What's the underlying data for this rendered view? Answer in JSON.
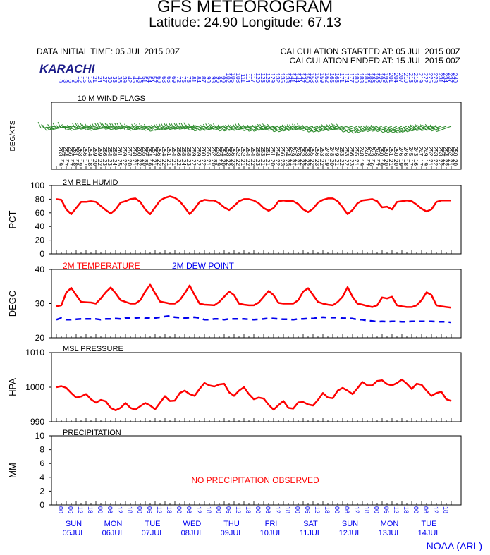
{
  "header": {
    "title": "GFS METEOROGRAM",
    "subtitle": "Latitude: 24.90 Longitude:  67.13",
    "data_initial_time": "DATA INITIAL TIME: 05 JUL 2015 00Z",
    "calc_started": "CALCULATION STARTED AT: 05 JUL 2015 00Z",
    "calc_ended": "CALCULATION ENDED AT: 15 JUL 2015 00Z",
    "location": "KARACHI",
    "credit": "NOAA (ARL)"
  },
  "colors": {
    "red": "#ff0000",
    "blue": "#0000ee",
    "green": "#2a8a2a",
    "navy": "#1c1c8a"
  },
  "chart_data": [
    {
      "type": "line",
      "panel": "wind",
      "title": "10 M  WIND FLAGS",
      "ylabel": "DEG/KTS",
      "directions_deg": [
        "263",
        "254",
        "256",
        "261",
        "263",
        "256",
        "254",
        "259",
        "259",
        "256",
        "254",
        "258",
        "261",
        "259",
        "257",
        "258",
        "260",
        "255",
        "254",
        "257",
        "256",
        "254",
        "251",
        "254",
        "256",
        "258",
        "258",
        "259",
        "259",
        "260",
        "255",
        "252",
        "253",
        "254",
        "258",
        "256",
        "252",
        "252",
        "254",
        "254",
        "258",
        "253",
        "251",
        "251",
        "254",
        "256",
        "254",
        "249",
        "249",
        "252",
        "253",
        "255",
        "256",
        "253",
        "248",
        "248",
        "249",
        "253",
        "253",
        "256",
        "255",
        "248",
        "246",
        "243",
        "246",
        "250",
        "250",
        "251",
        "250",
        "246",
        "246",
        "245",
        "243",
        "247",
        "249",
        "252",
        "253",
        "253",
        "254",
        "252",
        "250"
      ],
      "speeds_kts": [
        "19",
        "17",
        "17",
        "18",
        "19",
        "17",
        "18",
        "20",
        "22",
        "23",
        "23",
        "24",
        "25",
        "22",
        "20",
        "21",
        "22",
        "20",
        "19",
        "21",
        "22",
        "22",
        "21",
        "21",
        "22",
        "24",
        "23",
        "22",
        "22",
        "22",
        "21",
        "20",
        "19",
        "20",
        "22",
        "23",
        "22",
        "21",
        "22",
        "22",
        "23",
        "21",
        "21",
        "20",
        "22",
        "23",
        "23",
        "21",
        "21",
        "22",
        "22",
        "22",
        "23",
        "22",
        "19",
        "20",
        "21",
        "22",
        "22",
        "23",
        "21",
        "19",
        "17",
        "16",
        "17",
        "19",
        "20",
        "21",
        "20",
        "19",
        "18",
        "17",
        "16",
        "17",
        "19",
        "21",
        "22",
        "22",
        "22",
        "21",
        "20"
      ]
    },
    {
      "type": "line",
      "panel": "rh",
      "title": "2M REL HUMID",
      "ylabel": "PCT",
      "ylim": [
        0,
        100
      ],
      "yticks": [
        "100",
        "80",
        "60",
        "40",
        "20",
        "0"
      ],
      "series": [
        {
          "values": [
            80,
            79,
            65,
            58,
            67,
            76,
            76,
            77,
            76,
            70,
            64,
            59,
            65,
            75,
            77,
            80,
            81,
            76,
            65,
            58,
            68,
            78,
            82,
            84,
            82,
            77,
            68,
            58,
            66,
            76,
            79,
            78,
            78,
            74,
            68,
            64,
            70,
            77,
            80,
            80,
            78,
            74,
            67,
            63,
            67,
            77,
            78,
            77,
            77,
            73,
            65,
            61,
            66,
            75,
            79,
            81,
            81,
            77,
            68,
            58,
            64,
            74,
            78,
            79,
            80,
            77,
            68,
            69,
            65,
            76,
            77,
            78,
            77,
            72,
            66,
            62,
            65,
            76,
            78,
            78,
            78
          ]
        }
      ]
    },
    {
      "type": "line",
      "panel": "temp",
      "title": "2M TEMPERATURE",
      "title2": "2M   DEW POINT",
      "ylabel": "DEGC",
      "ylim": [
        20,
        40
      ],
      "yticks": [
        "40",
        "30",
        "20"
      ],
      "series": [
        {
          "name": "2M TEMPERATURE",
          "values": [
            29.2,
            29.5,
            33.2,
            34.6,
            32.5,
            30.5,
            30.4,
            30.3,
            30.0,
            31.5,
            33.3,
            34.7,
            33.0,
            31.0,
            30.5,
            30.0,
            30.0,
            31.0,
            33.5,
            35.5,
            33.0,
            30.6,
            30.3,
            30.0,
            30.0,
            31.0,
            33.0,
            35.3,
            32.5,
            30.0,
            29.7,
            29.6,
            29.5,
            30.5,
            32.0,
            33.5,
            32.5,
            30.0,
            29.7,
            29.5,
            29.5,
            30.3,
            32.0,
            33.7,
            32.5,
            30.2,
            30.0,
            30.0,
            30.0,
            31.0,
            33.5,
            34.5,
            32.5,
            30.5,
            30.0,
            29.7,
            29.5,
            30.5,
            32.0,
            34.8,
            32.0,
            30.0,
            29.7,
            29.3,
            29.0,
            29.5,
            31.8,
            31.5,
            32.0,
            29.5,
            29.2,
            29.0,
            29.0,
            29.5,
            31.0,
            33.3,
            32.5,
            29.5,
            29.2,
            29.0,
            28.8
          ]
        },
        {
          "name": "2M   DEW POINT",
          "values": [
            25.3,
            25.8,
            25.3,
            25.3,
            25.4,
            25.5,
            25.5,
            25.5,
            25.5,
            25.3,
            25.5,
            25.5,
            25.6,
            25.5,
            25.8,
            25.7,
            25.8,
            25.9,
            25.7,
            25.9,
            25.8,
            26.0,
            26.2,
            26.4,
            26.0,
            25.9,
            25.8,
            25.9,
            26.0,
            25.8,
            25.3,
            25.3,
            25.5,
            25.5,
            25.3,
            25.5,
            25.5,
            25.5,
            25.5,
            25.4,
            25.3,
            25.4,
            25.5,
            25.7,
            25.6,
            25.5,
            25.4,
            25.4,
            25.3,
            25.5,
            25.5,
            25.6,
            25.6,
            25.9,
            26.0,
            25.9,
            25.9,
            25.9,
            25.7,
            25.7,
            25.6,
            25.3,
            25.3,
            25.0,
            24.9,
            24.7,
            24.8,
            24.7,
            24.8,
            24.8,
            24.7,
            24.7,
            24.8,
            24.8,
            24.8,
            24.8,
            24.8,
            24.7,
            24.7,
            24.7,
            24.5
          ]
        }
      ]
    },
    {
      "type": "line",
      "panel": "pressure",
      "title": "MSL PRESSURE",
      "ylabel": "HPA",
      "ylim": [
        990,
        1010
      ],
      "yticks": [
        "1010",
        "1000",
        "990"
      ],
      "series": [
        {
          "values": [
            1000.0,
            1000.3,
            999.8,
            998.3,
            997.0,
            997.3,
            998.0,
            996.5,
            995.5,
            996.3,
            995.9,
            994.0,
            993.3,
            994.0,
            995.4,
            994.0,
            993.5,
            994.5,
            995.4,
            994.7,
            993.6,
            995.5,
            997.4,
            996.0,
            996.1,
            998.3,
            999.0,
            998.0,
            997.5,
            999.5,
            1001.2,
            1000.5,
            1000.2,
            1000.8,
            1001.0,
            998.5,
            997.5,
            999.0,
            1000.0,
            998.0,
            996.5,
            997.0,
            996.7,
            994.9,
            993.5,
            994.8,
            996.0,
            994.0,
            993.8,
            995.6,
            995.7,
            995.0,
            994.7,
            996.3,
            998.3,
            997.0,
            996.8,
            999.0,
            999.8,
            999.0,
            998.0,
            999.7,
            1001.5,
            1000.5,
            1000.5,
            1001.8,
            1002.0,
            1000.9,
            1000.5,
            1001.2,
            1002.2,
            1001.0,
            999.5,
            1001.0,
            1000.7,
            999.0,
            997.5,
            998.3,
            998.7,
            996.5,
            996.0
          ]
        }
      ]
    },
    {
      "type": "line",
      "panel": "precip",
      "title": "PRECIPITATION",
      "ylabel": "MM",
      "ylim": [
        0,
        10
      ],
      "yticks": [
        "10",
        "8",
        "6",
        "4",
        "2",
        "0"
      ],
      "annotation": "NO PRECIPITATION OBSERVED",
      "series": []
    }
  ],
  "time_axis": {
    "hours": [
      "00",
      "06",
      "12",
      "18",
      "00",
      "06",
      "12",
      "18",
      "00",
      "06",
      "12",
      "18",
      "00",
      "06",
      "12",
      "18",
      "00",
      "06",
      "12",
      "18",
      "00",
      "06",
      "12",
      "18",
      "00",
      "06",
      "12",
      "18",
      "00",
      "06",
      "12",
      "18",
      "00",
      "06",
      "12",
      "18",
      "00",
      "06",
      "12",
      "18"
    ],
    "days": [
      {
        "dow": "SUN",
        "date": "05JUL"
      },
      {
        "dow": "MON",
        "date": "06JUL"
      },
      {
        "dow": "TUE",
        "date": "07JUL"
      },
      {
        "dow": "WED",
        "date": "08JUL"
      },
      {
        "dow": "THU",
        "date": "09JUL"
      },
      {
        "dow": "FRI",
        "date": "10JUL"
      },
      {
        "dow": "SAT",
        "date": "11JUL"
      },
      {
        "dow": "SUN",
        "date": "12JUL"
      },
      {
        "dow": "MON",
        "date": "13JUL"
      },
      {
        "dow": "TUE",
        "date": "14JUL"
      }
    ],
    "forecast_hours": [
      "0",
      "3",
      "6",
      "9",
      "12",
      "15",
      "18",
      "21",
      "24",
      "27",
      "30",
      "33",
      "36",
      "39",
      "42",
      "45",
      "48",
      "51",
      "54",
      "57",
      "60",
      "63",
      "66",
      "69",
      "72",
      "75",
      "78",
      "81",
      "84",
      "87",
      "90",
      "93",
      "96",
      "99",
      "102",
      "105",
      "108",
      "111",
      "114",
      "117",
      "120",
      "123",
      "126",
      "129",
      "132",
      "135",
      "138",
      "141",
      "144",
      "147",
      "150",
      "153",
      "156",
      "159",
      "162",
      "165",
      "168",
      "171",
      "174",
      "177",
      "180",
      "183",
      "186",
      "189",
      "192",
      "195",
      "198",
      "201",
      "204",
      "207",
      "210",
      "213",
      "216",
      "219",
      "222",
      "225",
      "228",
      "231",
      "234",
      "237",
      "240"
    ]
  }
}
